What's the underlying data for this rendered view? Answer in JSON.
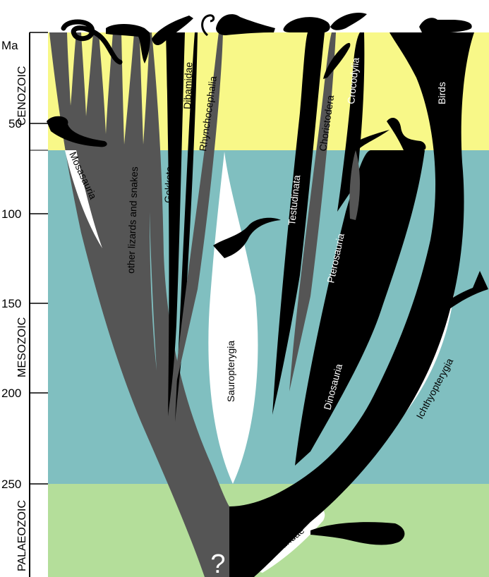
{
  "axis": {
    "unit": "Ma",
    "ticks": [
      "50",
      "100",
      "150",
      "200",
      "250"
    ]
  },
  "eras": {
    "cenozoic": "CENOZOIC",
    "mesozoic": "MESOZOIC",
    "palaeozoic": "PALAEOZOIC"
  },
  "clades": {
    "mosasauria": "Mosasauria",
    "lizards_snakes": "other lizards and snakes",
    "gekkota": "Gekkota",
    "dibamidae": "Dibamidae",
    "rhynchocephalia": "Rhynchocephalia",
    "sauropterygia": "Sauropterygia",
    "testudinata": "Testudinata",
    "choristodera": "Choristodera",
    "crocodylia": "Crocodylia",
    "pterosauria": "Pterosauria",
    "dinosauria": "Dinosauria",
    "birds": "Birds",
    "ichthyopterygia": "Ichthyopterygia",
    "mesosauridae": "Mesosauridae"
  },
  "root_mark": "?",
  "colors": {
    "cenozoic_band": "#f8f888",
    "mesozoic_band": "#80bfc0",
    "palaeozoic_band": "#b4de9a",
    "lepidosaur_lineage": "#555555",
    "archelosaur_lineage": "#000000",
    "marine_lineage": "#ffffff"
  }
}
